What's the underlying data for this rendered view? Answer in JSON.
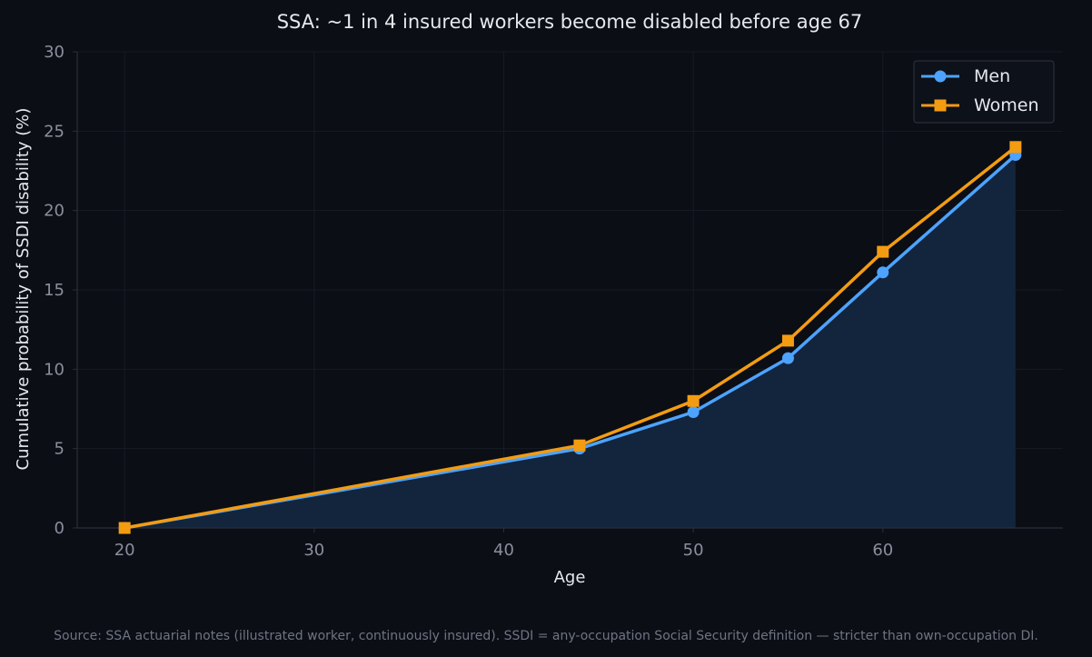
{
  "chart_data": {
    "type": "line",
    "title": "SSA: ~1 in 4 insured workers become disabled before age 67",
    "xlabel": "Age",
    "ylabel": "Cumulative probability of SSDI disability (%)",
    "xlim": [
      17.5,
      69.5
    ],
    "ylim": [
      0,
      30
    ],
    "xticks": [
      20,
      30,
      40,
      50,
      60
    ],
    "yticks": [
      0,
      5,
      10,
      15,
      20,
      25,
      30
    ],
    "grid": true,
    "legend_position": "top-right",
    "series": [
      {
        "name": "Men",
        "color": "#4da3ff",
        "marker": "circle",
        "filled_area": true,
        "x": [
          20,
          44,
          50,
          55,
          60,
          67
        ],
        "y": [
          0.0,
          5.0,
          7.3,
          10.7,
          16.1,
          23.5
        ]
      },
      {
        "name": "Women",
        "color": "#f39c12",
        "marker": "square",
        "filled_area": false,
        "x": [
          20,
          44,
          50,
          55,
          60,
          67
        ],
        "y": [
          0.0,
          5.2,
          8.0,
          11.8,
          17.4,
          24.0
        ]
      }
    ],
    "source_note": "Source: SSA actuarial notes (illustrated worker, continuously insured). SSDI = any-occupation Social Security definition — stricter than own-occupation DI."
  },
  "colors": {
    "background": "#0b0e15",
    "plot_background": "#0b0e15",
    "grid": "#161b25",
    "axis": "#2a2f3a",
    "area_fill": "#12253d"
  }
}
